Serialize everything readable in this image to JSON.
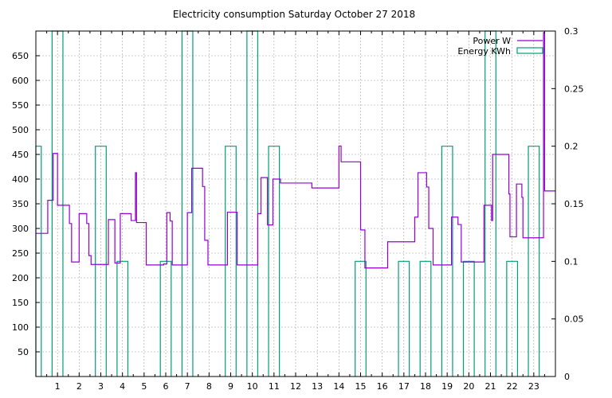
{
  "chart_data": {
    "type": "line",
    "title": "Electricity consumption Saturday October 27 2018",
    "xlabel": "",
    "ylabel": "",
    "y2label": "",
    "xlim": [
      0,
      24
    ],
    "ylim": [
      0,
      700
    ],
    "y2lim": [
      0,
      0.3
    ],
    "x_ticks": [
      1,
      2,
      3,
      4,
      5,
      6,
      7,
      8,
      9,
      10,
      11,
      12,
      13,
      14,
      15,
      16,
      17,
      18,
      19,
      20,
      21,
      22,
      23
    ],
    "y_ticks": [
      50,
      100,
      150,
      200,
      250,
      300,
      350,
      400,
      450,
      500,
      550,
      600,
      650
    ],
    "y2_ticks": [
      "0",
      "0.05",
      "0.1",
      "0.15",
      "0.2",
      "0.25",
      "0.3"
    ],
    "grid": true,
    "legend_position": "top-right",
    "colors": {
      "power": "#9400d3",
      "energy": "#009e73",
      "grid": "#a0a0a0"
    },
    "series": [
      {
        "name": "Power W",
        "axis": "y1",
        "style": "step",
        "points": [
          [
            0,
            290
          ],
          [
            0.55,
            290
          ],
          [
            0.55,
            357
          ],
          [
            0.8,
            357
          ],
          [
            0.8,
            452
          ],
          [
            1.0,
            452
          ],
          [
            1.0,
            347
          ],
          [
            1.55,
            347
          ],
          [
            1.55,
            310
          ],
          [
            1.65,
            310
          ],
          [
            1.65,
            232
          ],
          [
            2.0,
            232
          ],
          [
            2.0,
            330
          ],
          [
            2.35,
            330
          ],
          [
            2.35,
            310
          ],
          [
            2.45,
            310
          ],
          [
            2.45,
            245
          ],
          [
            2.55,
            245
          ],
          [
            2.55,
            227
          ],
          [
            3.35,
            227
          ],
          [
            3.35,
            318
          ],
          [
            3.65,
            318
          ],
          [
            3.65,
            230
          ],
          [
            3.9,
            230
          ],
          [
            3.9,
            330
          ],
          [
            4.4,
            330
          ],
          [
            4.4,
            316
          ],
          [
            4.6,
            316
          ],
          [
            4.6,
            413
          ],
          [
            4.65,
            413
          ],
          [
            4.65,
            312
          ],
          [
            5.1,
            312
          ],
          [
            5.1,
            226
          ],
          [
            5.9,
            226
          ],
          [
            5.9,
            228
          ],
          [
            6.05,
            228
          ],
          [
            6.05,
            332
          ],
          [
            6.2,
            332
          ],
          [
            6.2,
            315
          ],
          [
            6.3,
            315
          ],
          [
            6.3,
            226
          ],
          [
            7.0,
            226
          ],
          [
            7.0,
            332
          ],
          [
            7.2,
            332
          ],
          [
            7.2,
            422
          ],
          [
            7.7,
            422
          ],
          [
            7.7,
            385
          ],
          [
            7.8,
            385
          ],
          [
            7.8,
            276
          ],
          [
            7.95,
            276
          ],
          [
            7.95,
            226
          ],
          [
            8.85,
            226
          ],
          [
            8.85,
            333
          ],
          [
            9.3,
            333
          ],
          [
            9.3,
            226
          ],
          [
            10.25,
            226
          ],
          [
            10.25,
            330
          ],
          [
            10.4,
            330
          ],
          [
            10.4,
            403
          ],
          [
            10.7,
            403
          ],
          [
            10.7,
            307
          ],
          [
            10.95,
            307
          ],
          [
            10.95,
            400
          ],
          [
            11.3,
            400
          ],
          [
            11.3,
            392
          ],
          [
            12.75,
            392
          ],
          [
            12.75,
            382
          ],
          [
            14.0,
            382
          ],
          [
            14.0,
            467
          ],
          [
            14.1,
            467
          ],
          [
            14.1,
            435
          ],
          [
            15.0,
            435
          ],
          [
            15.0,
            297
          ],
          [
            15.2,
            297
          ],
          [
            15.2,
            220
          ],
          [
            16.25,
            220
          ],
          [
            16.25,
            273
          ],
          [
            17.5,
            273
          ],
          [
            17.5,
            323
          ],
          [
            17.65,
            323
          ],
          [
            17.65,
            413
          ],
          [
            18.05,
            413
          ],
          [
            18.05,
            384
          ],
          [
            18.15,
            384
          ],
          [
            18.15,
            300
          ],
          [
            18.35,
            300
          ],
          [
            18.35,
            226
          ],
          [
            19.2,
            226
          ],
          [
            19.2,
            323
          ],
          [
            19.5,
            323
          ],
          [
            19.5,
            308
          ],
          [
            19.65,
            308
          ],
          [
            19.65,
            232
          ],
          [
            20.7,
            232
          ],
          [
            20.7,
            347
          ],
          [
            21.05,
            347
          ],
          [
            21.05,
            316
          ],
          [
            21.1,
            316
          ],
          [
            21.1,
            450
          ],
          [
            21.85,
            450
          ],
          [
            21.85,
            370
          ],
          [
            21.9,
            370
          ],
          [
            21.9,
            283
          ],
          [
            22.2,
            283
          ],
          [
            22.2,
            390
          ],
          [
            22.45,
            390
          ],
          [
            22.45,
            363
          ],
          [
            22.5,
            363
          ],
          [
            22.5,
            281
          ],
          [
            23.45,
            281
          ],
          [
            23.45,
            697
          ],
          [
            23.5,
            697
          ],
          [
            23.5,
            376
          ],
          [
            24,
            376
          ]
        ]
      },
      {
        "name": "Energy KWh",
        "axis": "y2",
        "style": "impulse-bars",
        "bars": [
          {
            "x0": 0.0,
            "x1": 0.25,
            "value": 0.2
          },
          {
            "x0": 0.75,
            "x1": 1.25,
            "value": 0.3
          },
          {
            "x0": 2.75,
            "x1": 3.25,
            "value": 0.2
          },
          {
            "x0": 3.75,
            "x1": 4.25,
            "value": 0.1
          },
          {
            "x0": 5.75,
            "x1": 6.25,
            "value": 0.1
          },
          {
            "x0": 6.75,
            "x1": 7.25,
            "value": 0.3
          },
          {
            "x0": 8.75,
            "x1": 9.25,
            "value": 0.2
          },
          {
            "x0": 9.75,
            "x1": 10.25,
            "value": 0.3
          },
          {
            "x0": 10.75,
            "x1": 11.25,
            "value": 0.2
          },
          {
            "x0": 14.75,
            "x1": 15.25,
            "value": 0.1
          },
          {
            "x0": 16.75,
            "x1": 17.25,
            "value": 0.1
          },
          {
            "x0": 17.75,
            "x1": 18.25,
            "value": 0.1
          },
          {
            "x0": 18.75,
            "x1": 19.25,
            "value": 0.2
          },
          {
            "x0": 19.75,
            "x1": 20.25,
            "value": 0.1
          },
          {
            "x0": 20.75,
            "x1": 21.25,
            "value": 0.3
          },
          {
            "x0": 21.75,
            "x1": 22.25,
            "value": 0.1
          },
          {
            "x0": 22.75,
            "x1": 23.25,
            "value": 0.2
          }
        ]
      }
    ]
  }
}
